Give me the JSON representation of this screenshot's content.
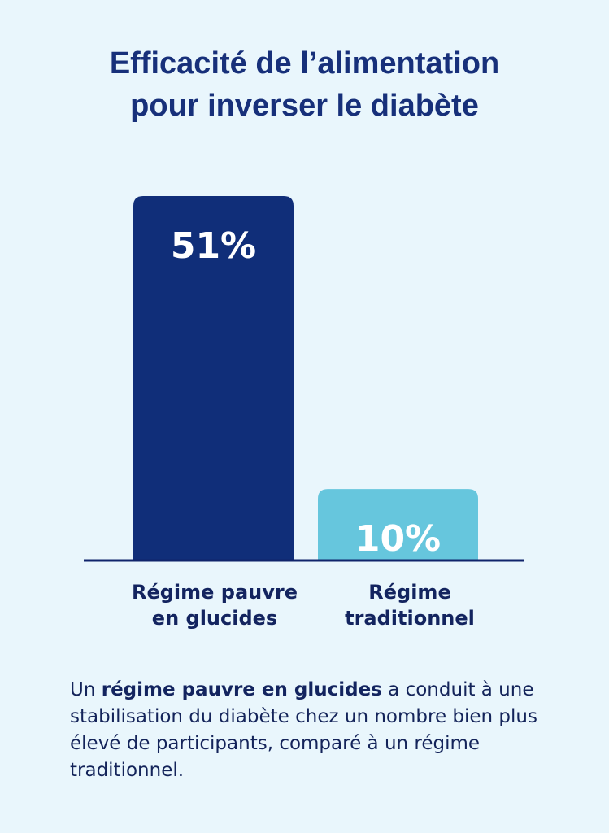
{
  "title": {
    "line1": "Efficacité de l’alimentation",
    "line2": "pour inverser le diabète"
  },
  "chart_data": {
    "type": "bar",
    "categories": [
      "Régime pauvre en glucides",
      "Régime traditionnel"
    ],
    "category_lines": [
      [
        "Régime pauvre",
        "en glucides"
      ],
      [
        "Régime",
        "traditionnel"
      ]
    ],
    "values": [
      51,
      10
    ],
    "value_labels": [
      "51%",
      "10%"
    ],
    "unit": "%",
    "colors": [
      "#102e79",
      "#66c6dd"
    ],
    "ylim": [
      0,
      51
    ],
    "grid": false,
    "legend": "none"
  },
  "caption": {
    "pre": "Un ",
    "bold": "régime pauvre en glucides",
    "post": " a conduit à une stabilisation du diabète chez un nombre bien plus élevé de participants, comparé à un régime traditionnel."
  }
}
